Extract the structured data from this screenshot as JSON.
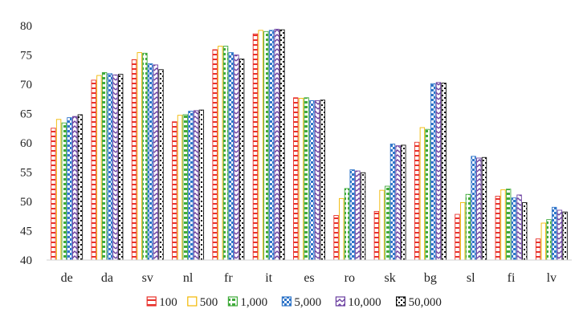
{
  "chart_data": {
    "type": "bar",
    "title": "",
    "xlabel": "",
    "ylabel": "",
    "ylim": [
      40,
      80
    ],
    "yticks": [
      40,
      45,
      50,
      55,
      60,
      65,
      70,
      75,
      80
    ],
    "grid": false,
    "legend_position": "bottom",
    "categories": [
      "de",
      "da",
      "sv",
      "nl",
      "fr",
      "it",
      "es",
      "ro",
      "sk",
      "bg",
      "sl",
      "fi",
      "lv"
    ],
    "series": [
      {
        "name": "100",
        "color": "#e8312a",
        "pattern": "horizontal-dash",
        "values": [
          62.5,
          70.7,
          74.2,
          63.6,
          75.9,
          78.6,
          67.7,
          47.6,
          48.3,
          60.1,
          47.8,
          50.9,
          43.6
        ]
      },
      {
        "name": "500",
        "color": "#f2b800",
        "pattern": "solid-light",
        "values": [
          64.0,
          71.5,
          75.4,
          64.7,
          76.5,
          79.2,
          67.6,
          50.5,
          51.9,
          62.6,
          49.8,
          52.0,
          46.3
        ]
      },
      {
        "name": "1,000",
        "color": "#3faa3a",
        "pattern": "dashed",
        "values": [
          63.4,
          72.0,
          75.3,
          64.8,
          76.5,
          79.0,
          67.7,
          52.2,
          52.6,
          62.3,
          51.2,
          52.1,
          46.9
        ]
      },
      {
        "name": "5,000",
        "color": "#2f75c9",
        "pattern": "checker",
        "values": [
          64.3,
          71.8,
          73.5,
          65.4,
          75.4,
          79.2,
          67.2,
          55.4,
          59.8,
          70.1,
          57.7,
          50.6,
          49.0
        ]
      },
      {
        "name": "10,000",
        "color": "#6b3fa0",
        "pattern": "zigzag",
        "values": [
          64.5,
          71.6,
          73.3,
          65.5,
          75.0,
          79.4,
          67.2,
          55.2,
          59.5,
          70.3,
          57.4,
          51.1,
          48.5
        ]
      },
      {
        "name": "50,000",
        "color": "#111111",
        "pattern": "dotted",
        "values": [
          64.8,
          71.7,
          72.5,
          65.6,
          74.3,
          79.3,
          67.3,
          54.9,
          59.6,
          70.2,
          57.5,
          49.8,
          48.2
        ]
      }
    ]
  }
}
